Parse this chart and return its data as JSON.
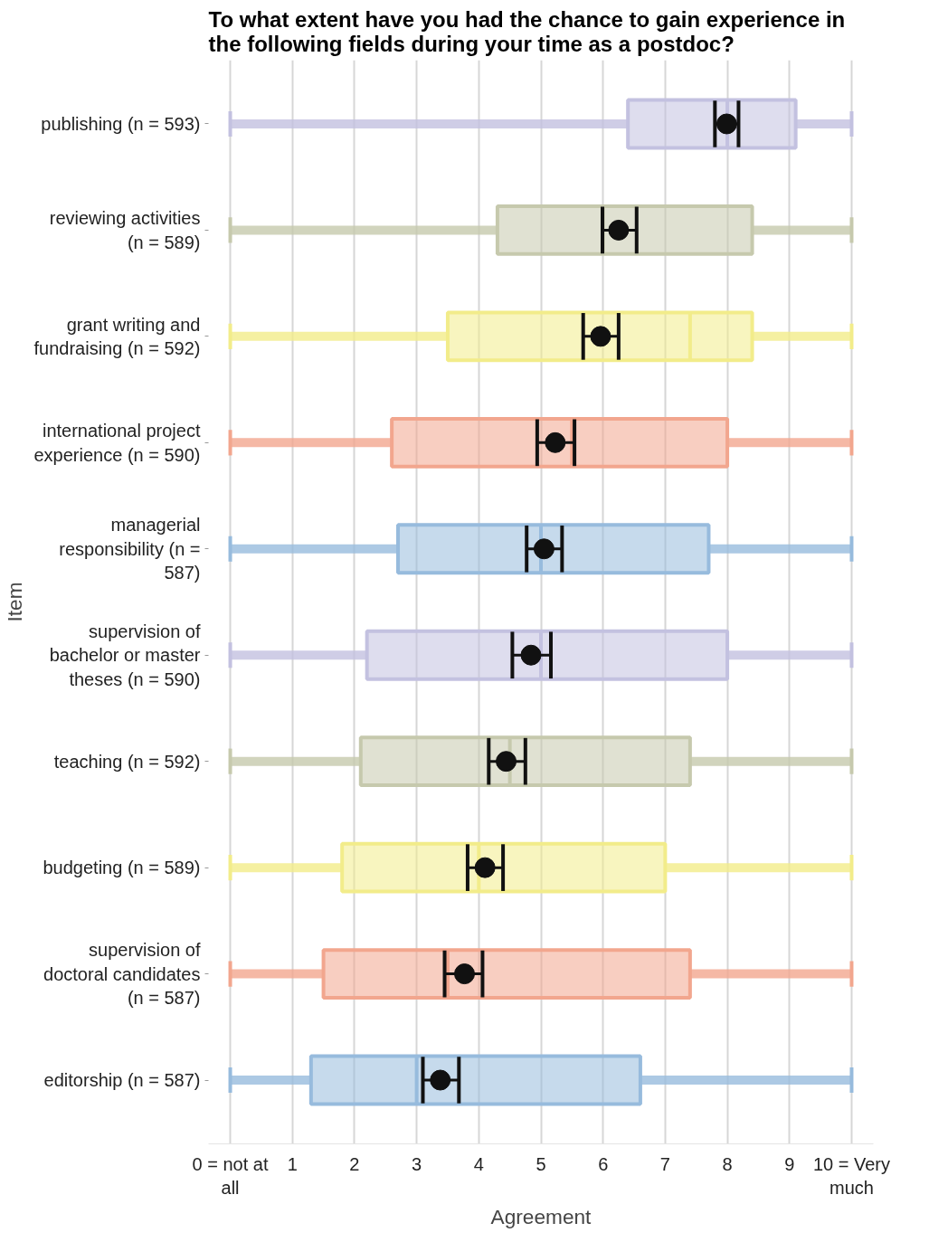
{
  "chart_data": {
    "type": "box",
    "orientation": "horizontal",
    "title": "To what extent have you had the chance to gain experience in the following fields during your time as a postdoc?",
    "xlabel": "Agreement",
    "ylabel": "Item",
    "categories": [
      "publishing (n = 593)",
      "reviewing activities (n = 589)",
      "grant writing and fundraising (n = 592)",
      "international project experience (n = 590)",
      "managerial responsibility (n = 587)",
      "supervision of bachelor or master theses (n = 590)",
      "teaching (n = 592)",
      "budgeting (n = 589)",
      "supervision of doctoral candidates (n = 587)",
      "editorship (n = 587)"
    ],
    "xlim": [
      -0.35,
      10.35
    ],
    "xticks": [
      {
        "value": 0,
        "label": "0 = not at all"
      },
      1,
      2,
      3,
      4,
      5,
      6,
      7,
      8,
      9,
      {
        "value": 10,
        "label": "10 = Very much"
      }
    ],
    "grid": "x",
    "series": [
      {
        "type": "box",
        "colors": [
          "#c3c1e0",
          "#c6c9ad",
          "#f2ec8a",
          "#f2a68e",
          "#97bbdd",
          "#c3c1e0",
          "#c6c9ad",
          "#f2ec8a",
          "#f2a68e",
          "#97bbdd"
        ],
        "boxes": [
          {
            "low": 0,
            "q1": 6.4,
            "median": 8,
            "q3": 9.1,
            "high": 10
          },
          {
            "low": 0,
            "q1": 4.3,
            "median": 6,
            "q3": 8.4,
            "high": 10
          },
          {
            "low": 0,
            "q1": 3.5,
            "median": 7.4,
            "q3": 8.4,
            "high": 10
          },
          {
            "low": 0,
            "q1": 2.6,
            "median": 5.5,
            "q3": 8,
            "high": 10
          },
          {
            "low": 0,
            "q1": 2.7,
            "median": 5,
            "q3": 7.7,
            "high": 10
          },
          {
            "low": 0,
            "q1": 2.2,
            "median": 5,
            "q3": 8,
            "high": 10
          },
          {
            "low": 0,
            "q1": 2.1,
            "median": 4.5,
            "q3": 7.4,
            "high": 10
          },
          {
            "low": 0,
            "q1": 1.8,
            "median": 4,
            "q3": 7,
            "high": 10
          },
          {
            "low": 0,
            "q1": 1.5,
            "median": 3.5,
            "q3": 7.4,
            "high": 10
          },
          {
            "low": 0,
            "q1": 1.3,
            "median": 3,
            "q3": 6.6,
            "high": 10
          }
        ]
      },
      {
        "type": "scatter",
        "color": "#111111",
        "marker": "circle",
        "x": [
          "publishing (n = 593)",
          "reviewing activities (n = 589)",
          "grant writing and fundraising (n = 592)",
          "international project experience (n = 590)",
          "managerial responsibility (n = 587)",
          "supervision of bachelor or master theses (n = 590)",
          "teaching (n = 592)",
          "budgeting (n = 589)",
          "supervision of doctoral candidates (n = 587)",
          "editorship (n = 587)"
        ],
        "values": [
          7.99,
          6.25,
          5.96,
          5.23,
          5.05,
          4.84,
          4.44,
          4.1,
          3.77,
          3.38
        ],
        "errors": [
          [
            7.8,
            8.18
          ],
          [
            5.99,
            6.54
          ],
          [
            5.68,
            6.25
          ],
          [
            4.94,
            5.54
          ],
          [
            4.77,
            5.34
          ],
          [
            4.54,
            5.16
          ],
          [
            4.16,
            4.75
          ],
          [
            3.82,
            4.39
          ],
          [
            3.45,
            4.06
          ],
          [
            3.1,
            3.68
          ]
        ]
      }
    ]
  }
}
